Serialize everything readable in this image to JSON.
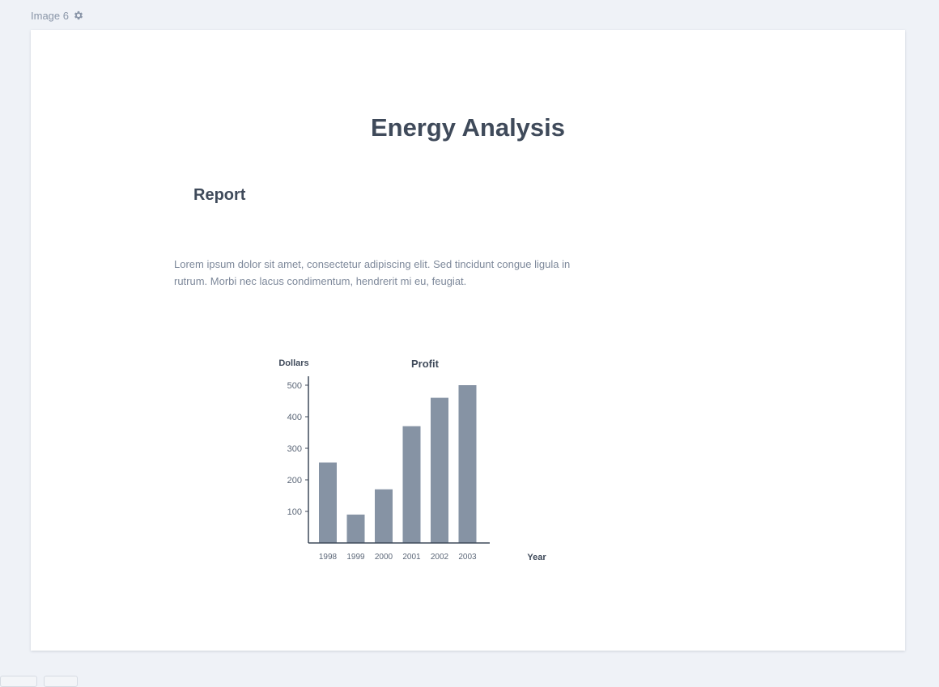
{
  "header": {
    "label": "Image 6",
    "icon": "gear-icon"
  },
  "page": {
    "title": "Energy Analysis",
    "subtitle": "Report",
    "paragraph": "Lorem ipsum dolor sit amet, consectetur adipiscing elit. Sed tincidunt congue ligula in rutrum. Morbi nec lacus condimentum, hendrerit mi eu, feugiat."
  },
  "colors": {
    "background": "#eff2f7",
    "panel": "#ffffff",
    "heading": "#3f4a5a",
    "body_text": "#7d889a",
    "bar": "#8693a4",
    "axis": "#3f4a5a"
  },
  "chart_data": {
    "type": "bar",
    "title": "Profit",
    "xlabel": "Year",
    "ylabel": "Dollars",
    "categories": [
      "1998",
      "1999",
      "2000",
      "2001",
      "2002",
      "2003"
    ],
    "values": [
      255,
      90,
      170,
      370,
      460,
      500
    ],
    "yticks": [
      100,
      200,
      300,
      400,
      500
    ],
    "ylim": [
      0,
      525
    ],
    "grid": false,
    "legend": "none"
  }
}
